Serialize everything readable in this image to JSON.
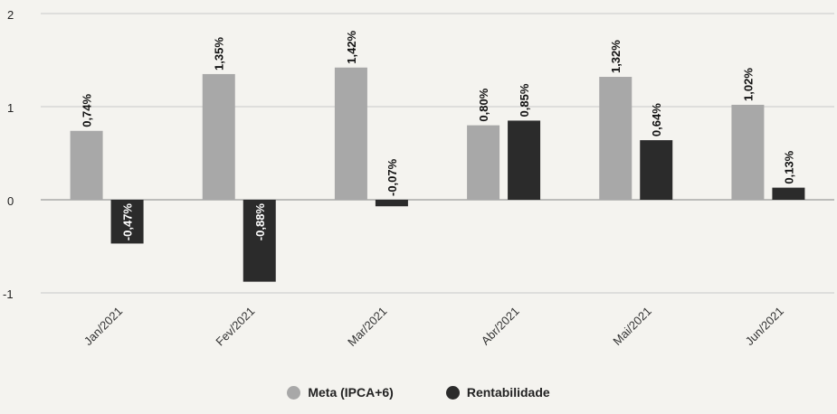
{
  "chart_data": {
    "type": "bar",
    "categories": [
      "Jan/2021",
      "Fev/2021",
      "Mar/2021",
      "Abr/2021",
      "Mai/2021",
      "Jun/2021"
    ],
    "series": [
      {
        "name": "Meta (IPCA+6)",
        "color": "#a8a8a8",
        "values": [
          0.74,
          1.35,
          1.42,
          0.8,
          1.32,
          1.02
        ],
        "labels": [
          "0,74%",
          "1,35%",
          "1,42%",
          "0,80%",
          "1,32%",
          "1,02%"
        ]
      },
      {
        "name": "Rentabilidade",
        "color": "#2b2b2b",
        "values": [
          -0.47,
          -0.88,
          -0.07,
          0.85,
          0.64,
          0.13
        ],
        "labels": [
          "-0,47%",
          "-0,88%",
          "-0,07%",
          "0,85%",
          "0,64%",
          "0,13%"
        ]
      }
    ],
    "ylim": [
      -1,
      2
    ],
    "yticks": [
      2,
      1,
      0,
      -1
    ],
    "ytick_labels": [
      "2",
      "1",
      "0",
      "-1"
    ],
    "title": "",
    "xlabel": "",
    "ylabel": "",
    "grid": true,
    "legend_position": "bottom"
  }
}
